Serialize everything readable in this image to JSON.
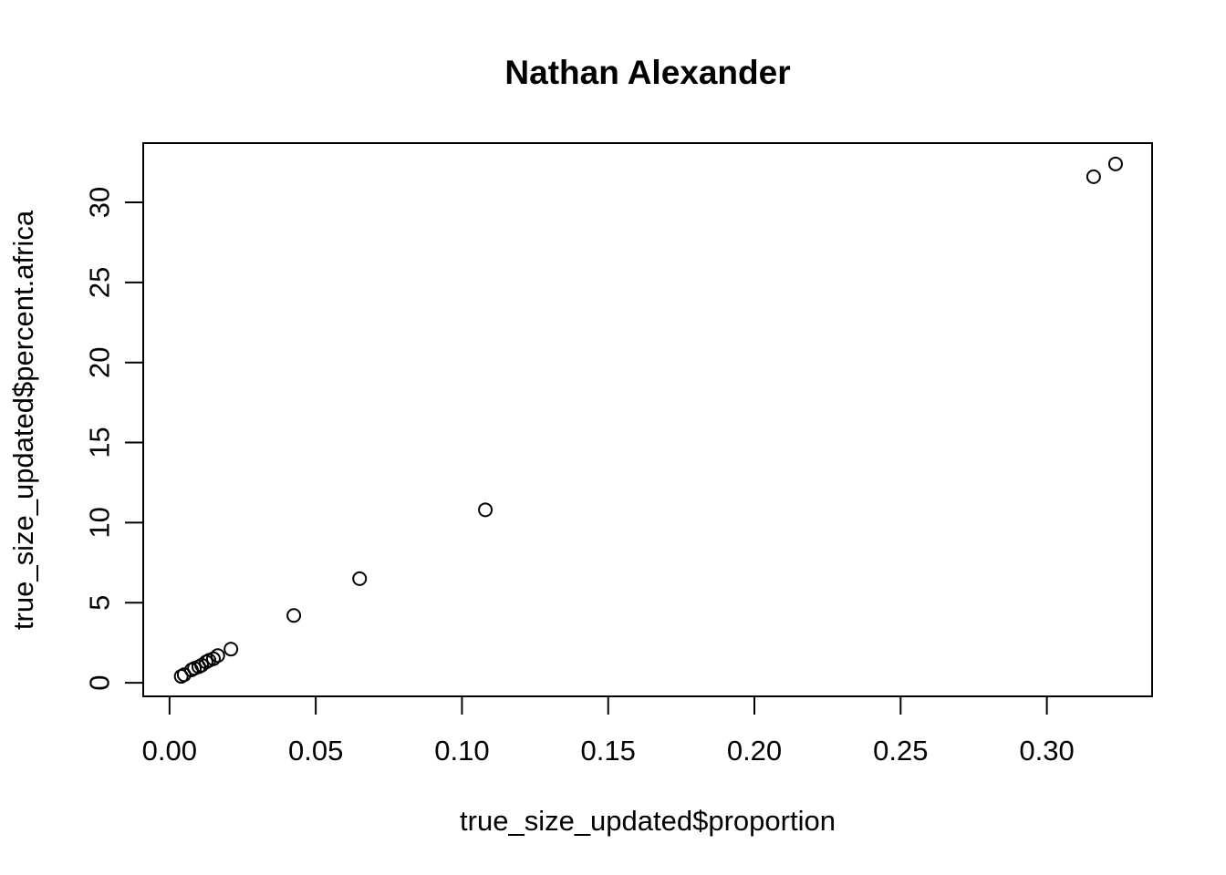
{
  "chart_data": {
    "type": "scatter",
    "title": "Nathan Alexander",
    "xlabel": "true_size_updated$proportion",
    "ylabel": "true_size_updated$percent.africa",
    "xlim": [
      -0.009,
      0.336
    ],
    "ylim": [
      -0.85,
      33.7
    ],
    "x_ticks": [
      0.0,
      0.05,
      0.1,
      0.15,
      0.2,
      0.25,
      0.3
    ],
    "x_tick_labels": [
      "0.00",
      "0.05",
      "0.10",
      "0.15",
      "0.20",
      "0.25",
      "0.30"
    ],
    "y_ticks": [
      0,
      5,
      10,
      15,
      20,
      25,
      30
    ],
    "y_tick_labels": [
      "0",
      "5",
      "10",
      "15",
      "20",
      "25",
      "30"
    ],
    "grid": false,
    "marker": "open-circle",
    "color": "#000000",
    "points": [
      {
        "x": 0.004,
        "y": 0.4
      },
      {
        "x": 0.005,
        "y": 0.5
      },
      {
        "x": 0.0075,
        "y": 0.8
      },
      {
        "x": 0.0085,
        "y": 0.9
      },
      {
        "x": 0.01,
        "y": 1.0
      },
      {
        "x": 0.011,
        "y": 1.1
      },
      {
        "x": 0.0125,
        "y": 1.3
      },
      {
        "x": 0.0135,
        "y": 1.4
      },
      {
        "x": 0.015,
        "y": 1.5
      },
      {
        "x": 0.0165,
        "y": 1.7
      },
      {
        "x": 0.021,
        "y": 2.1
      },
      {
        "x": 0.0425,
        "y": 4.2
      },
      {
        "x": 0.065,
        "y": 6.5
      },
      {
        "x": 0.108,
        "y": 10.8
      },
      {
        "x": 0.316,
        "y": 31.6
      },
      {
        "x": 0.3235,
        "y": 32.4
      }
    ]
  }
}
